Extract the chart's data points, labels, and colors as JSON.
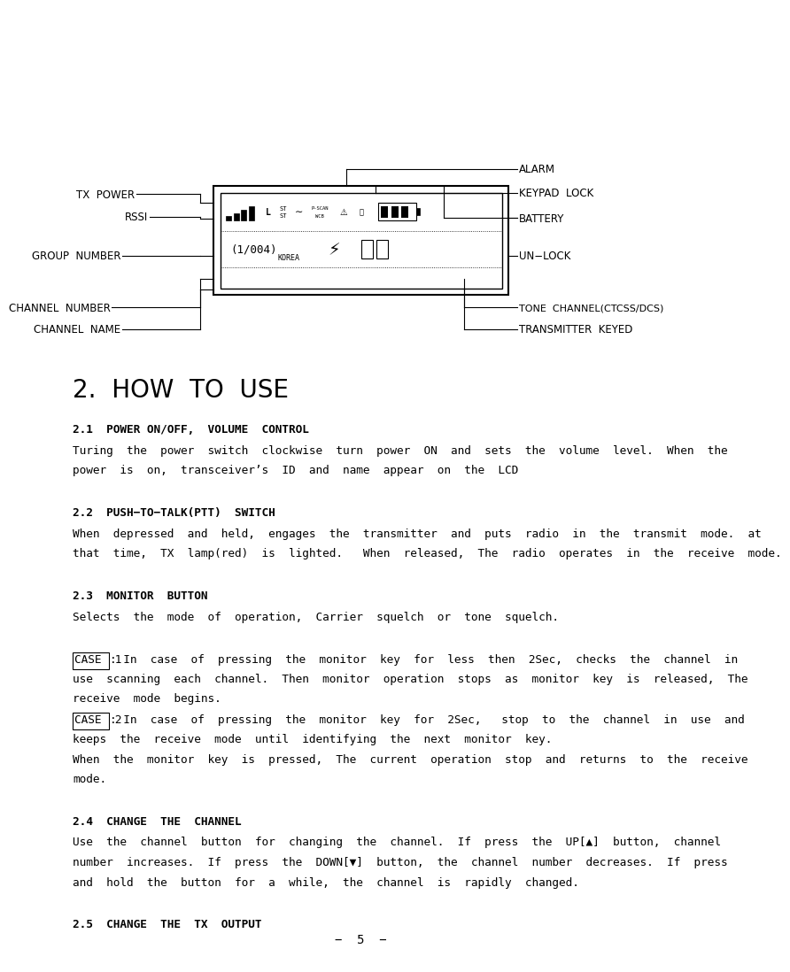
{
  "bg_color": "#ffffff",
  "page_width": 9.48,
  "page_height": 14.01,
  "section_title": "2.  HOW  TO  USE",
  "sections": [
    {
      "heading": "2.1  POWER ON/OFF,  VOLUME  CONTROL",
      "body_lines": [
        "Turing  the  power  switch  clockwise  turn  power  ON  and  sets  the  volume  level.  When  the",
        "power  is  on,  transceiver’s  ID  and  name  appear  on  the  LCD"
      ]
    },
    {
      "heading": "2.2  PUSH−TO−TALK(PTT)  SWITCH",
      "body_lines": [
        "When  depressed  and  held,  engages  the  transmitter  and  puts  radio  in  the  transmit  mode.  at",
        "that  time,  TX  lamp(red)  is  lighted.   When  released,  The  radio  operates  in  the  receive  mode."
      ]
    },
    {
      "heading": "2.3  MONITOR  BUTTON",
      "body_lines": [
        "Selects  the  mode  of  operation,  Carrier  squelch  or  tone  squelch."
      ]
    },
    {
      "heading": null,
      "body_lines": [
        "CASE1:: In  case  of  pressing  the  monitor  key  for  less  then  2Sec,  checks  the  channel  in",
        "use  scanning  each  channel.  Then  monitor  operation  stops  as  monitor  key  is  released,  The",
        "receive  mode  begins.",
        "CASE2:: In  case  of  pressing  the  monitor  key  for  2Sec,   stop  to  the  channel  in  use  and",
        "keeps  the  receive  mode  until  identifying  the  next  monitor  key.",
        "When  the  monitor  key  is  pressed,  The  current  operation  stop  and  returns  to  the  receive",
        "mode."
      ]
    },
    {
      "heading": "2.4  CHANGE  THE  CHANNEL",
      "body_lines": [
        "Use  the  channel  button  for  changing  the  channel.  If  press  the  UP[▲]  button,  channel",
        "number  increases.  If  press  the  DOWN[▼]  button,  the  channel  number  decreases.  If  press",
        "and  hold  the  button  for  a  while,  the  channel  is  rapidly  changed."
      ]
    },
    {
      "heading": "2.5  CHANGE  THE  TX  OUTPUT",
      "body_lines": []
    }
  ],
  "footer": "−  5  −"
}
